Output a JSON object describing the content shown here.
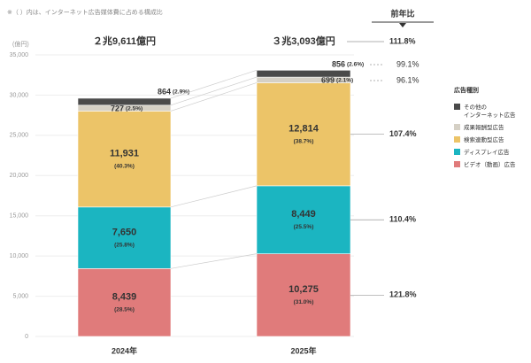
{
  "chart_data": {
    "type": "bar",
    "stacked": true,
    "note": "※（ ）内は、インターネット広告媒体費に占める構成比",
    "y_unit": "(億円)",
    "categories": [
      "2024年",
      "2025年"
    ],
    "total_labels": [
      "２兆9,611億円",
      "３兆3,093億円"
    ],
    "yoy_title": "前年比",
    "total_yoy": "111.8%",
    "legend_title": "広告種別",
    "ylim": [
      0,
      35000
    ],
    "yticks": [
      0,
      {
        "value": 5000,
        "label": "5,000"
      },
      {
        "value": 10000,
        "label": "10,000"
      },
      {
        "value": 15000,
        "label": "15,000"
      },
      {
        "value": 20000,
        "label": "20,000"
      },
      {
        "value": 25000,
        "label": "25,000"
      },
      {
        "value": 30000,
        "label": "30,000"
      },
      {
        "value": 35000,
        "label": "35,000"
      }
    ],
    "grid": true,
    "series": [
      {
        "name": "ビデオ（動画）広告",
        "color": "#e07b7b",
        "values": [
          8439,
          10275
        ],
        "value_labels": [
          "8,439",
          "10,275"
        ],
        "share_labels": [
          "(28.5%)",
          "(31.0%)"
        ],
        "yoy": "121.8%"
      },
      {
        "name": "ディスプレイ広告",
        "color": "#1bb5c1",
        "values": [
          7650,
          8449
        ],
        "value_labels": [
          "7,650",
          "8,449"
        ],
        "share_labels": [
          "(25.8%)",
          "(25.5%)"
        ],
        "yoy": "110.4%"
      },
      {
        "name": "検索連動型広告",
        "color": "#ecc468",
        "values": [
          11931,
          12814
        ],
        "value_labels": [
          "11,931",
          "12,814"
        ],
        "share_labels": [
          "(40.3%)",
          "(38.7%)"
        ],
        "yoy": "107.4%"
      },
      {
        "name": "成果報酬型広告",
        "color": "#d5d0c5",
        "values": [
          727,
          699
        ],
        "value_labels": [
          "727",
          "699"
        ],
        "share_labels": [
          "(2.5%)",
          "(2.1%)"
        ],
        "yoy": "96.1%"
      },
      {
        "name": "その他の\nインターネット広告",
        "color": "#4a4a4a",
        "values": [
          864,
          856
        ],
        "value_labels": [
          "864",
          "856"
        ],
        "share_labels": [
          "(2.9%)",
          "(2.6%)"
        ],
        "yoy": "99.1%"
      }
    ]
  }
}
